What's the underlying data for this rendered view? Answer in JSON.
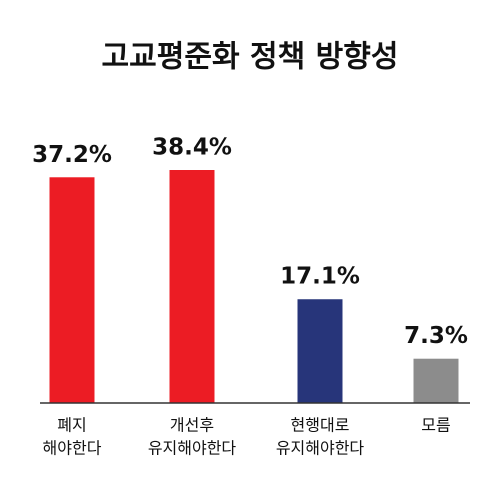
{
  "chart_data": {
    "type": "bar",
    "title": "고교평준화 정책 방향성",
    "categories": [
      [
        "폐지",
        "해야한다"
      ],
      [
        "개선후",
        "유지해야한다"
      ],
      [
        "현행대로",
        "유지해야한다"
      ],
      [
        "모름"
      ]
    ],
    "values": [
      37.2,
      38.4,
      17.1,
      7.3
    ],
    "value_labels": [
      "37.2%",
      "38.4%",
      "17.1%",
      "7.3%"
    ],
    "colors": [
      "#ec1c24",
      "#ec1c24",
      "#27357a",
      "#8c8c8c"
    ]
  }
}
